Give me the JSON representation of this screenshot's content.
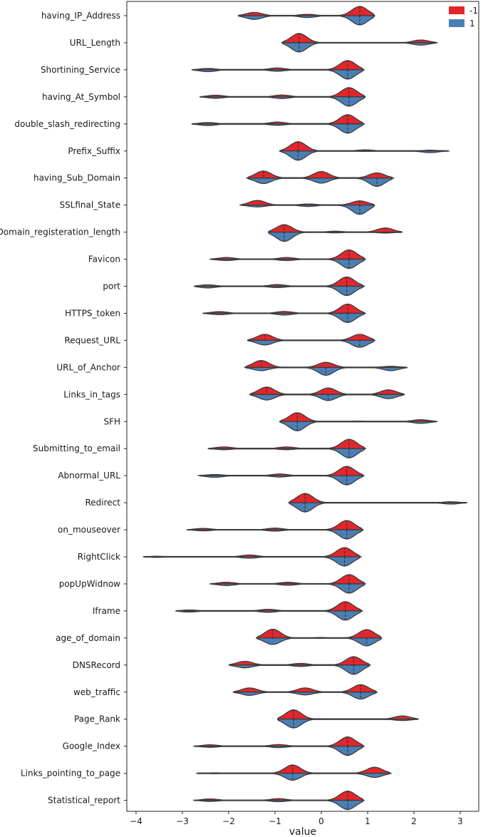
{
  "chart_data": {
    "type": "violin",
    "split": true,
    "title": "",
    "xlabel": "value",
    "ylabel": "",
    "xlim": [
      -4.2,
      3.4
    ],
    "xticks": [
      -4,
      -3,
      -2,
      -1,
      0,
      1,
      2,
      3
    ],
    "legend": {
      "position": "top-right",
      "entries": [
        {
          "label": "-1",
          "color": "#e3262b"
        },
        {
          "label": "1",
          "color": "#4a7fb5"
        }
      ]
    },
    "series_colors": {
      "-1": "#e3262b",
      "1": "#4a7fb5"
    },
    "features": [
      {
        "name": "having_IP_Address",
        "min": -1.8,
        "max": 1.15,
        "modes": [
          {
            "x": -1.45,
            "top": 0.35,
            "bot": 0.4
          },
          {
            "x": -0.3,
            "top": 0.15,
            "bot": 0.2
          },
          {
            "x": 0.83,
            "top": 1.0,
            "bot": 1.0
          }
        ],
        "med_top": 0.83,
        "med_bot": 0.83
      },
      {
        "name": "URL_Length",
        "min": -0.85,
        "max": 2.5,
        "modes": [
          {
            "x": -0.48,
            "top": 1.0,
            "bot": 1.0
          },
          {
            "x": 2.15,
            "top": 0.3,
            "bot": 0.25
          }
        ],
        "med_top": -0.48,
        "med_bot": -0.48
      },
      {
        "name": "Shortining_Service",
        "min": -2.8,
        "max": 0.92,
        "modes": [
          {
            "x": -2.45,
            "top": 0.15,
            "bot": 0.2
          },
          {
            "x": -0.95,
            "top": 0.2,
            "bot": 0.15
          },
          {
            "x": 0.57,
            "top": 1.0,
            "bot": 1.0
          }
        ],
        "med_top": 0.57,
        "med_bot": 0.57
      },
      {
        "name": "having_At_Symbol",
        "min": -2.62,
        "max": 0.95,
        "modes": [
          {
            "x": -2.28,
            "top": 0.18,
            "bot": 0.15
          },
          {
            "x": -0.85,
            "top": 0.2,
            "bot": 0.18
          },
          {
            "x": 0.6,
            "top": 1.0,
            "bot": 1.0
          }
        ],
        "med_top": 0.6,
        "med_bot": 0.6
      },
      {
        "name": "double_slash_redirecting",
        "min": -2.8,
        "max": 0.92,
        "modes": [
          {
            "x": -2.45,
            "top": 0.15,
            "bot": 0.18
          },
          {
            "x": -0.95,
            "top": 0.2,
            "bot": 0.15
          },
          {
            "x": 0.57,
            "top": 1.0,
            "bot": 1.0
          }
        ],
        "med_top": 0.57,
        "med_bot": 0.57
      },
      {
        "name": "Prefix_Suffix",
        "min": -0.9,
        "max": 2.75,
        "modes": [
          {
            "x": -0.5,
            "top": 1.0,
            "bot": 1.0
          },
          {
            "x": 0.95,
            "top": 0.12,
            "bot": 0.05
          },
          {
            "x": 2.35,
            "top": 0.08,
            "bot": 0.18
          }
        ],
        "med_top": -0.5,
        "med_bot": -0.5
      },
      {
        "name": "having_Sub_Domain",
        "min": -1.6,
        "max": 1.55,
        "modes": [
          {
            "x": -1.25,
            "top": 0.75,
            "bot": 0.6
          },
          {
            "x": 0.0,
            "top": 0.7,
            "bot": 0.55
          },
          {
            "x": 1.2,
            "top": 0.55,
            "bot": 0.9
          }
        ],
        "med_top": -1.25,
        "med_bot": 1.2
      },
      {
        "name": "SSLfinal_State",
        "min": -1.75,
        "max": 1.15,
        "modes": [
          {
            "x": -1.38,
            "top": 0.5,
            "bot": 0.2
          },
          {
            "x": -0.28,
            "top": 0.12,
            "bot": 0.15
          },
          {
            "x": 0.83,
            "top": 0.45,
            "bot": 1.0
          }
        ],
        "med_top": 0.83,
        "med_bot": 0.83
      },
      {
        "name": "Domain_registeration_length",
        "min": -1.15,
        "max": 1.75,
        "modes": [
          {
            "x": -0.8,
            "top": 0.8,
            "bot": 1.0
          },
          {
            "x": 0.3,
            "top": 0.1,
            "bot": 0.08
          },
          {
            "x": 1.38,
            "top": 0.45,
            "bot": 0.1
          }
        ],
        "med_top": -0.8,
        "med_bot": -0.8
      },
      {
        "name": "Favicon",
        "min": -2.4,
        "max": 0.95,
        "modes": [
          {
            "x": -2.05,
            "top": 0.18,
            "bot": 0.15
          },
          {
            "x": -0.75,
            "top": 0.18,
            "bot": 0.15
          },
          {
            "x": 0.6,
            "top": 1.0,
            "bot": 1.0
          }
        ],
        "med_top": 0.6,
        "med_bot": 0.6
      },
      {
        "name": "port",
        "min": -2.75,
        "max": 0.92,
        "modes": [
          {
            "x": -2.45,
            "top": 0.15,
            "bot": 0.18
          },
          {
            "x": -0.95,
            "top": 0.18,
            "bot": 0.15
          },
          {
            "x": 0.55,
            "top": 1.0,
            "bot": 1.0
          }
        ],
        "med_top": 0.55,
        "med_bot": 0.55
      },
      {
        "name": "HTTPS_token",
        "min": -2.55,
        "max": 0.95,
        "modes": [
          {
            "x": -2.2,
            "top": 0.18,
            "bot": 0.15
          },
          {
            "x": -0.8,
            "top": 0.2,
            "bot": 0.18
          },
          {
            "x": 0.57,
            "top": 1.0,
            "bot": 1.0
          }
        ],
        "med_top": 0.57,
        "med_bot": 0.57
      },
      {
        "name": "Request_URL",
        "min": -1.6,
        "max": 1.15,
        "modes": [
          {
            "x": -1.22,
            "top": 0.65,
            "bot": 0.5
          },
          {
            "x": 0.83,
            "top": 0.65,
            "bot": 0.75
          }
        ],
        "med_top": -1.22,
        "med_bot": 0.83
      },
      {
        "name": "URL_of_Anchor",
        "min": -1.65,
        "max": 1.85,
        "modes": [
          {
            "x": -1.3,
            "top": 0.75,
            "bot": 0.35
          },
          {
            "x": 0.1,
            "top": 0.55,
            "bot": 0.85
          },
          {
            "x": 1.5,
            "top": 0.12,
            "bot": 0.35
          }
        ],
        "med_top": -1.3,
        "med_bot": 0.1
      },
      {
        "name": "Links_in_tags",
        "min": -1.55,
        "max": 1.8,
        "modes": [
          {
            "x": -1.18,
            "top": 0.8,
            "bot": 0.6
          },
          {
            "x": 0.15,
            "top": 0.7,
            "bot": 0.65
          },
          {
            "x": 1.45,
            "top": 0.5,
            "bot": 0.45
          }
        ],
        "med_top": -1.18,
        "med_bot": 0.15
      },
      {
        "name": "SFH",
        "min": -0.9,
        "max": 2.5,
        "modes": [
          {
            "x": -0.52,
            "top": 0.95,
            "bot": 1.0
          },
          {
            "x": 0.8,
            "top": 0.05,
            "bot": 0.03
          },
          {
            "x": 2.15,
            "top": 0.2,
            "bot": 0.2
          }
        ],
        "med_top": -0.52,
        "med_bot": -0.52
      },
      {
        "name": "Submitting_to_email",
        "min": -2.45,
        "max": 0.95,
        "modes": [
          {
            "x": -2.1,
            "top": 0.18,
            "bot": 0.12
          },
          {
            "x": -0.75,
            "top": 0.18,
            "bot": 0.12
          },
          {
            "x": 0.6,
            "top": 1.0,
            "bot": 1.0
          }
        ],
        "med_top": 0.6,
        "med_bot": 0.6
      },
      {
        "name": "Abnormal_URL",
        "min": -2.65,
        "max": 0.92,
        "modes": [
          {
            "x": -2.3,
            "top": 0.12,
            "bot": 0.18
          },
          {
            "x": -0.9,
            "top": 0.18,
            "bot": 0.15
          },
          {
            "x": 0.55,
            "top": 1.0,
            "bot": 1.0
          }
        ],
        "med_top": 0.55,
        "med_bot": 0.55
      },
      {
        "name": "Redirect",
        "min": -0.7,
        "max": 3.15,
        "modes": [
          {
            "x": -0.35,
            "top": 1.0,
            "bot": 1.0
          },
          {
            "x": 2.8,
            "top": 0.1,
            "bot": 0.15
          }
        ],
        "med_top": -0.35,
        "med_bot": -0.35
      },
      {
        "name": "on_mouseover",
        "min": -2.9,
        "max": 0.9,
        "modes": [
          {
            "x": -2.55,
            "top": 0.15,
            "bot": 0.12
          },
          {
            "x": -1.0,
            "top": 0.18,
            "bot": 0.15
          },
          {
            "x": 0.55,
            "top": 1.0,
            "bot": 1.0
          }
        ],
        "med_top": 0.55,
        "med_bot": 0.55
      },
      {
        "name": "RightClick",
        "min": -3.85,
        "max": 0.85,
        "modes": [
          {
            "x": -3.55,
            "top": 0.06,
            "bot": 0.06
          },
          {
            "x": -1.55,
            "top": 0.2,
            "bot": 0.15
          },
          {
            "x": 0.5,
            "top": 1.0,
            "bot": 1.0
          }
        ],
        "med_top": 0.5,
        "med_bot": 0.5
      },
      {
        "name": "popUpWidnow",
        "min": -2.4,
        "max": 0.95,
        "modes": [
          {
            "x": -2.05,
            "top": 0.18,
            "bot": 0.18
          },
          {
            "x": -0.72,
            "top": 0.18,
            "bot": 0.15
          },
          {
            "x": 0.6,
            "top": 1.0,
            "bot": 1.0
          }
        ],
        "med_top": 0.6,
        "med_bot": 0.6
      },
      {
        "name": "Iframe",
        "min": -3.15,
        "max": 0.88,
        "modes": [
          {
            "x": -2.85,
            "top": 0.1,
            "bot": 0.12
          },
          {
            "x": -1.15,
            "top": 0.18,
            "bot": 0.15
          },
          {
            "x": 0.52,
            "top": 1.0,
            "bot": 1.0
          }
        ],
        "med_top": 0.52,
        "med_bot": 0.52
      },
      {
        "name": "age_of_domain",
        "min": -1.4,
        "max": 1.3,
        "modes": [
          {
            "x": -1.05,
            "top": 0.95,
            "bot": 0.7
          },
          {
            "x": 0.0,
            "top": 0.05,
            "bot": 0.05
          },
          {
            "x": 0.98,
            "top": 0.9,
            "bot": 0.85
          }
        ],
        "med_top": -1.05,
        "med_bot": 0.98
      },
      {
        "name": "DNSRecord",
        "min": -2.0,
        "max": 1.05,
        "modes": [
          {
            "x": -1.65,
            "top": 0.4,
            "bot": 0.3
          },
          {
            "x": -0.45,
            "top": 0.18,
            "bot": 0.15
          },
          {
            "x": 0.7,
            "top": 0.9,
            "bot": 1.0
          }
        ],
        "med_top": 0.7,
        "med_bot": 0.7
      },
      {
        "name": "web_traffic",
        "min": -1.9,
        "max": 1.2,
        "modes": [
          {
            "x": -1.55,
            "top": 0.45,
            "bot": 0.35
          },
          {
            "x": -0.35,
            "top": 0.45,
            "bot": 0.3
          },
          {
            "x": 0.85,
            "top": 0.8,
            "bot": 0.75
          }
        ],
        "med_top": 0.85,
        "med_bot": 0.85
      },
      {
        "name": "Page_Rank",
        "min": -0.95,
        "max": 2.1,
        "modes": [
          {
            "x": -0.6,
            "top": 1.0,
            "bot": 0.95
          },
          {
            "x": 1.75,
            "top": 0.35,
            "bot": 0.15
          }
        ],
        "med_top": -0.6,
        "med_bot": -0.6
      },
      {
        "name": "Google_Index",
        "min": -2.75,
        "max": 0.92,
        "modes": [
          {
            "x": -2.4,
            "top": 0.15,
            "bot": 0.12
          },
          {
            "x": -0.92,
            "top": 0.18,
            "bot": 0.15
          },
          {
            "x": 0.57,
            "top": 1.0,
            "bot": 1.0
          }
        ],
        "med_top": 0.57,
        "med_bot": 0.57
      },
      {
        "name": "Links_pointing_to_page",
        "min": -2.7,
        "max": 1.5,
        "modes": [
          {
            "x": -2.3,
            "top": 0.05,
            "bot": 0.05
          },
          {
            "x": -0.62,
            "top": 0.9,
            "bot": 0.75
          },
          {
            "x": 1.15,
            "top": 0.65,
            "bot": 0.45
          }
        ],
        "med_top": -0.62,
        "med_bot": -0.62
      },
      {
        "name": "Statistical_report",
        "min": -2.75,
        "max": 0.92,
        "modes": [
          {
            "x": -2.4,
            "top": 0.15,
            "bot": 0.12
          },
          {
            "x": -0.92,
            "top": 0.18,
            "bot": 0.15
          },
          {
            "x": 0.57,
            "top": 1.0,
            "bot": 1.0
          }
        ],
        "med_top": 0.57,
        "med_bot": 0.57
      }
    ]
  }
}
